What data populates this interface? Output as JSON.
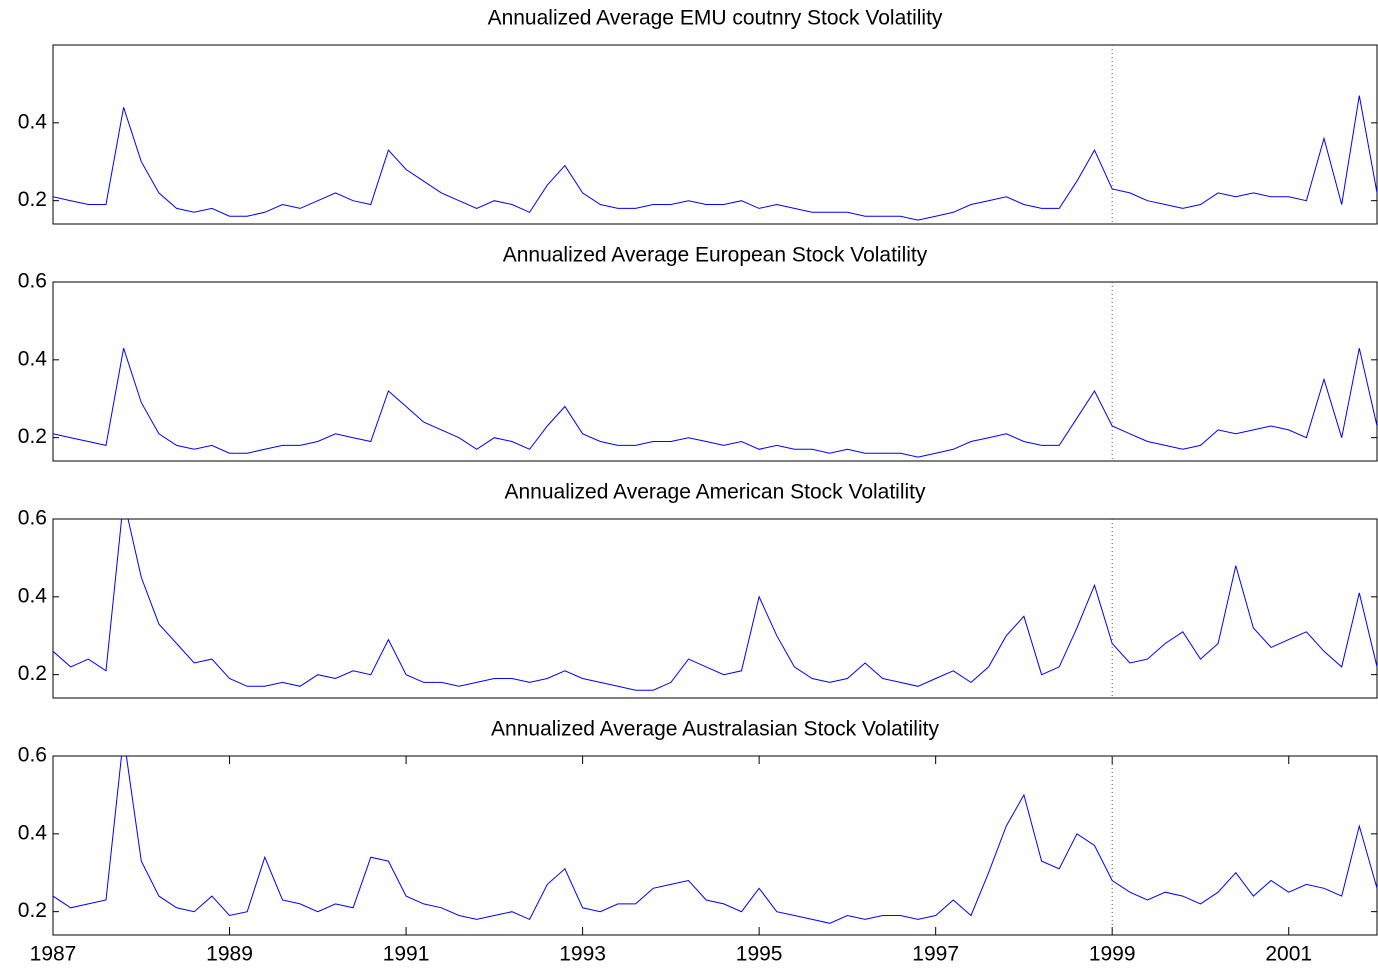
{
  "chart_data": [
    {
      "type": "line",
      "title": "Annualized Average EMU coutnry Stock Volatility",
      "color": "#0000ff",
      "x": [
        1987,
        1987.2,
        1987.4,
        1987.6,
        1987.8,
        1988,
        1988.2,
        1988.4,
        1988.6,
        1988.8,
        1989,
        1989.2,
        1989.4,
        1989.6,
        1989.8,
        1990,
        1990.2,
        1990.4,
        1990.6,
        1990.8,
        1991,
        1991.2,
        1991.4,
        1991.6,
        1991.8,
        1992,
        1992.2,
        1992.4,
        1992.6,
        1992.8,
        1993,
        1993.2,
        1993.4,
        1993.6,
        1993.8,
        1994,
        1994.2,
        1994.4,
        1994.6,
        1994.8,
        1995,
        1995.2,
        1995.4,
        1995.6,
        1995.8,
        1996,
        1996.2,
        1996.4,
        1996.6,
        1996.8,
        1997,
        1997.2,
        1997.4,
        1997.6,
        1997.8,
        1998,
        1998.2,
        1998.4,
        1998.6,
        1998.8,
        1999,
        1999.2,
        1999.4,
        1999.6,
        1999.8,
        2000,
        2000.2,
        2000.4,
        2000.6,
        2000.8,
        2001,
        2001.2,
        2001.4,
        2001.6,
        2001.8,
        2002
      ],
      "values": [
        0.21,
        0.2,
        0.19,
        0.19,
        0.44,
        0.3,
        0.22,
        0.18,
        0.17,
        0.18,
        0.16,
        0.16,
        0.17,
        0.19,
        0.18,
        0.2,
        0.22,
        0.2,
        0.19,
        0.33,
        0.28,
        0.25,
        0.22,
        0.2,
        0.18,
        0.2,
        0.19,
        0.17,
        0.24,
        0.29,
        0.22,
        0.19,
        0.18,
        0.18,
        0.19,
        0.19,
        0.2,
        0.19,
        0.19,
        0.2,
        0.18,
        0.19,
        0.18,
        0.17,
        0.17,
        0.17,
        0.16,
        0.16,
        0.16,
        0.15,
        0.16,
        0.17,
        0.19,
        0.2,
        0.21,
        0.19,
        0.18,
        0.18,
        0.25,
        0.33,
        0.23,
        0.22,
        0.2,
        0.19,
        0.18,
        0.19,
        0.22,
        0.21,
        0.22,
        0.21,
        0.21,
        0.2,
        0.36,
        0.19,
        0.47,
        0.22
      ],
      "xlim": [
        1987,
        2002
      ],
      "ylim": [
        0.14,
        0.6
      ],
      "yticks": [
        0.2,
        0.4
      ],
      "vline": 1999
    },
    {
      "type": "line",
      "title": "Annualized Average European Stock Volatility",
      "color": "#0000ff",
      "x": [
        1987,
        1987.2,
        1987.4,
        1987.6,
        1987.8,
        1988,
        1988.2,
        1988.4,
        1988.6,
        1988.8,
        1989,
        1989.2,
        1989.4,
        1989.6,
        1989.8,
        1990,
        1990.2,
        1990.4,
        1990.6,
        1990.8,
        1991,
        1991.2,
        1991.4,
        1991.6,
        1991.8,
        1992,
        1992.2,
        1992.4,
        1992.6,
        1992.8,
        1993,
        1993.2,
        1993.4,
        1993.6,
        1993.8,
        1994,
        1994.2,
        1994.4,
        1994.6,
        1994.8,
        1995,
        1995.2,
        1995.4,
        1995.6,
        1995.8,
        1996,
        1996.2,
        1996.4,
        1996.6,
        1996.8,
        1997,
        1997.2,
        1997.4,
        1997.6,
        1997.8,
        1998,
        1998.2,
        1998.4,
        1998.6,
        1998.8,
        1999,
        1999.2,
        1999.4,
        1999.6,
        1999.8,
        2000,
        2000.2,
        2000.4,
        2000.6,
        2000.8,
        2001,
        2001.2,
        2001.4,
        2001.6,
        2001.8,
        2002
      ],
      "values": [
        0.21,
        0.2,
        0.19,
        0.18,
        0.43,
        0.29,
        0.21,
        0.18,
        0.17,
        0.18,
        0.16,
        0.16,
        0.17,
        0.18,
        0.18,
        0.19,
        0.21,
        0.2,
        0.19,
        0.32,
        0.28,
        0.24,
        0.22,
        0.2,
        0.17,
        0.2,
        0.19,
        0.17,
        0.23,
        0.28,
        0.21,
        0.19,
        0.18,
        0.18,
        0.19,
        0.19,
        0.2,
        0.19,
        0.18,
        0.19,
        0.17,
        0.18,
        0.17,
        0.17,
        0.16,
        0.17,
        0.16,
        0.16,
        0.16,
        0.15,
        0.16,
        0.17,
        0.19,
        0.2,
        0.21,
        0.19,
        0.18,
        0.18,
        0.25,
        0.32,
        0.23,
        0.21,
        0.19,
        0.18,
        0.17,
        0.18,
        0.22,
        0.21,
        0.22,
        0.23,
        0.22,
        0.2,
        0.35,
        0.2,
        0.43,
        0.23
      ],
      "xlim": [
        1987,
        2002
      ],
      "ylim": [
        0.14,
        0.6
      ],
      "yticks": [
        0.2,
        0.4,
        0.6
      ],
      "vline": 1999
    },
    {
      "type": "line",
      "title": "Annualized Average American Stock Volatility",
      "color": "#0000ff",
      "x": [
        1987,
        1987.2,
        1987.4,
        1987.6,
        1987.8,
        1988,
        1988.2,
        1988.4,
        1988.6,
        1988.8,
        1989,
        1989.2,
        1989.4,
        1989.6,
        1989.8,
        1990,
        1990.2,
        1990.4,
        1990.6,
        1990.8,
        1991,
        1991.2,
        1991.4,
        1991.6,
        1991.8,
        1992,
        1992.2,
        1992.4,
        1992.6,
        1992.8,
        1993,
        1993.2,
        1993.4,
        1993.6,
        1993.8,
        1994,
        1994.2,
        1994.4,
        1994.6,
        1994.8,
        1995,
        1995.2,
        1995.4,
        1995.6,
        1995.8,
        1996,
        1996.2,
        1996.4,
        1996.6,
        1996.8,
        1997,
        1997.2,
        1997.4,
        1997.6,
        1997.8,
        1998,
        1998.2,
        1998.4,
        1998.6,
        1998.8,
        1999,
        1999.2,
        1999.4,
        1999.6,
        1999.8,
        2000,
        2000.2,
        2000.4,
        2000.6,
        2000.8,
        2001,
        2001.2,
        2001.4,
        2001.6,
        2001.8,
        2002
      ],
      "values": [
        0.26,
        0.22,
        0.24,
        0.21,
        0.65,
        0.45,
        0.33,
        0.28,
        0.23,
        0.24,
        0.19,
        0.17,
        0.17,
        0.18,
        0.17,
        0.2,
        0.19,
        0.21,
        0.2,
        0.29,
        0.2,
        0.18,
        0.18,
        0.17,
        0.18,
        0.19,
        0.19,
        0.18,
        0.19,
        0.21,
        0.19,
        0.18,
        0.17,
        0.16,
        0.16,
        0.18,
        0.24,
        0.22,
        0.2,
        0.21,
        0.4,
        0.3,
        0.22,
        0.19,
        0.18,
        0.19,
        0.23,
        0.19,
        0.18,
        0.17,
        0.19,
        0.21,
        0.18,
        0.22,
        0.3,
        0.35,
        0.2,
        0.22,
        0.32,
        0.43,
        0.28,
        0.23,
        0.24,
        0.28,
        0.31,
        0.24,
        0.28,
        0.48,
        0.32,
        0.27,
        0.29,
        0.31,
        0.26,
        0.22,
        0.41,
        0.22
      ],
      "xlim": [
        1987,
        2002
      ],
      "ylim": [
        0.14,
        0.6
      ],
      "yticks": [
        0.2,
        0.4,
        0.6
      ],
      "vline": 1999
    },
    {
      "type": "line",
      "title": "Annualized Average Australasian Stock Volatility",
      "color": "#0000ff",
      "x": [
        1987,
        1987.2,
        1987.4,
        1987.6,
        1987.8,
        1988,
        1988.2,
        1988.4,
        1988.6,
        1988.8,
        1989,
        1989.2,
        1989.4,
        1989.6,
        1989.8,
        1990,
        1990.2,
        1990.4,
        1990.6,
        1990.8,
        1991,
        1991.2,
        1991.4,
        1991.6,
        1991.8,
        1992,
        1992.2,
        1992.4,
        1992.6,
        1992.8,
        1993,
        1993.2,
        1993.4,
        1993.6,
        1993.8,
        1994,
        1994.2,
        1994.4,
        1994.6,
        1994.8,
        1995,
        1995.2,
        1995.4,
        1995.6,
        1995.8,
        1996,
        1996.2,
        1996.4,
        1996.6,
        1996.8,
        1997,
        1997.2,
        1997.4,
        1997.6,
        1997.8,
        1998,
        1998.2,
        1998.4,
        1998.6,
        1998.8,
        1999,
        1999.2,
        1999.4,
        1999.6,
        1999.8,
        2000,
        2000.2,
        2000.4,
        2000.6,
        2000.8,
        2001,
        2001.2,
        2001.4,
        2001.6,
        2001.8,
        2002
      ],
      "values": [
        0.24,
        0.21,
        0.22,
        0.23,
        0.65,
        0.33,
        0.24,
        0.21,
        0.2,
        0.24,
        0.19,
        0.2,
        0.34,
        0.23,
        0.22,
        0.2,
        0.22,
        0.21,
        0.34,
        0.33,
        0.24,
        0.22,
        0.21,
        0.19,
        0.18,
        0.19,
        0.2,
        0.18,
        0.27,
        0.31,
        0.21,
        0.2,
        0.22,
        0.22,
        0.26,
        0.27,
        0.28,
        0.23,
        0.22,
        0.2,
        0.26,
        0.2,
        0.19,
        0.18,
        0.17,
        0.19,
        0.18,
        0.19,
        0.19,
        0.18,
        0.19,
        0.23,
        0.19,
        0.3,
        0.42,
        0.5,
        0.33,
        0.31,
        0.4,
        0.37,
        0.28,
        0.25,
        0.23,
        0.25,
        0.24,
        0.22,
        0.25,
        0.3,
        0.24,
        0.28,
        0.25,
        0.27,
        0.26,
        0.24,
        0.42,
        0.26
      ],
      "xlim": [
        1987,
        2002
      ],
      "ylim": [
        0.14,
        0.6
      ],
      "yticks": [
        0.2,
        0.4,
        0.6
      ],
      "vline": 1999,
      "xticks": [
        1987,
        1989,
        1991,
        1993,
        1995,
        1997,
        1999,
        2001
      ]
    }
  ]
}
